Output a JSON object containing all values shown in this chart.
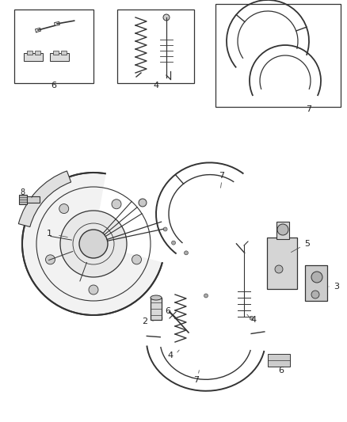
{
  "bg_color": "#ffffff",
  "lc": "#444444",
  "dc": "#333333",
  "gc": "#888888",
  "fig_width": 4.38,
  "fig_height": 5.33,
  "dpi": 100
}
